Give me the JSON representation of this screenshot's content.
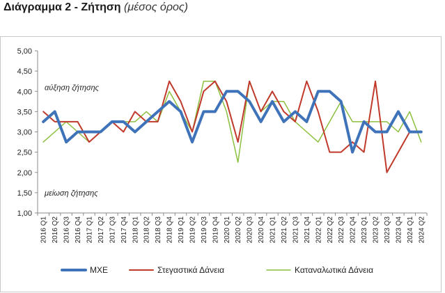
{
  "title": {
    "main": "Διάγραμμα 2 - Ζήτηση",
    "sub": "(μέσος όρος)"
  },
  "chart_data": {
    "type": "line",
    "title": "Διάγραμμα 2 - Ζήτηση",
    "subtitle": "(μέσος όρος)",
    "xlabel": "",
    "ylabel": "",
    "ylim": [
      1.0,
      5.0
    ],
    "yticks": [
      "1,00",
      "1,50",
      "2,00",
      "2,50",
      "3,00",
      "3,50",
      "4,00",
      "4,50",
      "5,00"
    ],
    "grid": false,
    "legend": "bottom",
    "categories": [
      "2016 Q1",
      "2016 Q2",
      "2016 Q3",
      "2016 Q4",
      "2017 Q1",
      "2017 Q2",
      "2017 Q3",
      "2017 Q4",
      "2018 Q1",
      "2018 Q2",
      "2018 Q3",
      "2018 Q4",
      "2019 Q1",
      "2019 Q2",
      "2019 Q3",
      "2019 Q4",
      "2020 Q1",
      "2020 Q2",
      "2020 Q3",
      "2020 Q4",
      "2021 Q1",
      "2021 Q2",
      "2021 Q3",
      "2021 Q4",
      "2022 Q1",
      "2022 Q2",
      "2022 Q3",
      "2022 Q4",
      "2023 Q1",
      "2023 Q2",
      "2023 Q3",
      "2023 Q4",
      "2024 Q1",
      "2024 Q2"
    ],
    "annotations": [
      {
        "text": "αύξηση ζήτησης",
        "y": 4.1
      },
      {
        "text": "μείωση ζήτησης",
        "y": 1.5
      }
    ],
    "series": [
      {
        "name": "ΜΧΕ",
        "color": "#3f73b9",
        "width": 4,
        "values": [
          3.25,
          3.5,
          2.75,
          3.0,
          3.0,
          3.0,
          3.25,
          3.25,
          3.0,
          3.25,
          3.5,
          3.75,
          3.5,
          2.75,
          3.5,
          3.5,
          4.0,
          4.0,
          3.75,
          3.25,
          3.75,
          3.25,
          3.5,
          3.25,
          4.0,
          4.0,
          3.75,
          2.5,
          3.25,
          3.0,
          3.0,
          3.5,
          3.0,
          3.0
        ]
      },
      {
        "name": "Στεγαστικά Δάνεια",
        "color": "#c0392b",
        "width": 2,
        "values": [
          3.5,
          3.25,
          3.25,
          3.25,
          2.75,
          3.0,
          3.25,
          3.0,
          3.5,
          3.25,
          3.25,
          4.25,
          3.75,
          3.0,
          4.0,
          4.25,
          3.75,
          2.75,
          4.25,
          3.5,
          4.0,
          3.5,
          3.25,
          4.25,
          3.5,
          2.5,
          2.5,
          2.75,
          2.5,
          4.25,
          2.0,
          2.5,
          3.0,
          3.0
        ]
      },
      {
        "name": "Καταναλωτικά Δάνεια",
        "color": "#8cbf3f",
        "width": 1.5,
        "values": [
          2.75,
          3.0,
          3.25,
          3.0,
          2.75,
          3.0,
          3.25,
          3.25,
          3.25,
          3.5,
          3.25,
          4.0,
          3.5,
          3.0,
          4.25,
          4.25,
          3.5,
          2.25,
          4.25,
          3.5,
          3.75,
          3.75,
          3.25,
          3.0,
          2.75,
          3.25,
          3.75,
          3.25,
          3.25,
          3.25,
          3.25,
          3.0,
          3.5,
          2.75
        ]
      }
    ]
  }
}
